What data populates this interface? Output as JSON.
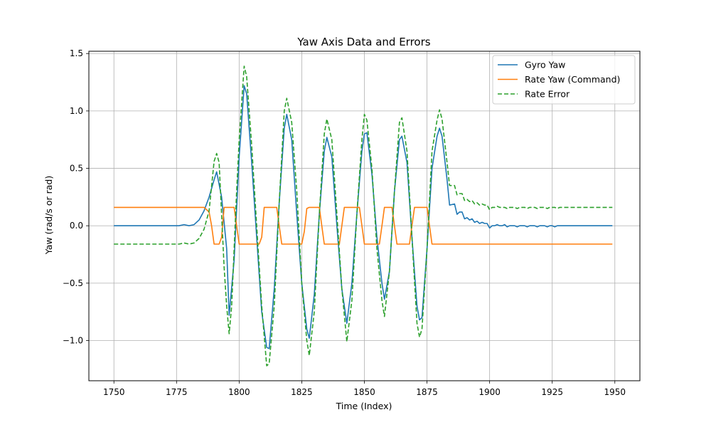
{
  "chart_data": {
    "type": "line",
    "title": "Yaw Axis Data and Errors",
    "xlabel": "Time (Index)",
    "ylabel": "Yaw (rad/s or rad)",
    "xlim": [
      1740,
      1960
    ],
    "ylim": [
      -1.35,
      1.52
    ],
    "xticks": [
      1750,
      1775,
      1800,
      1825,
      1850,
      1875,
      1900,
      1925,
      1950
    ],
    "xtick_labels": [
      "1750",
      "1775",
      "1800",
      "1825",
      "1850",
      "1875",
      "1900",
      "1925",
      "1950"
    ],
    "yticks": [
      -1.0,
      -0.5,
      0.0,
      0.5,
      1.0,
      1.5
    ],
    "ytick_labels": [
      "−1.0",
      "−0.5",
      "0.0",
      "0.5",
      "1.0",
      "1.5"
    ],
    "grid": true,
    "legend_position": "top-right",
    "series": [
      {
        "name": "Gyro Yaw",
        "color": "#1f77b4",
        "dash": "solid",
        "points": [
          [
            1750,
            0.0
          ],
          [
            1776,
            0.0
          ],
          [
            1778,
            0.01
          ],
          [
            1780,
            0.0
          ],
          [
            1782,
            0.01
          ],
          [
            1784,
            0.05
          ],
          [
            1786,
            0.13
          ],
          [
            1788,
            0.25
          ],
          [
            1790,
            0.4
          ],
          [
            1791,
            0.47
          ],
          [
            1793,
            0.25
          ],
          [
            1795,
            -0.2
          ],
          [
            1796,
            -0.78
          ],
          [
            1798,
            -0.3
          ],
          [
            1800,
            0.6
          ],
          [
            1802,
            1.22
          ],
          [
            1803,
            1.15
          ],
          [
            1805,
            0.55
          ],
          [
            1807,
            -0.1
          ],
          [
            1809,
            -0.75
          ],
          [
            1811,
            -1.06
          ],
          [
            1812,
            -1.07
          ],
          [
            1814,
            -0.55
          ],
          [
            1816,
            0.2
          ],
          [
            1818,
            0.85
          ],
          [
            1819,
            0.97
          ],
          [
            1821,
            0.75
          ],
          [
            1823,
            0.1
          ],
          [
            1825,
            -0.5
          ],
          [
            1827,
            -0.9
          ],
          [
            1828,
            -0.98
          ],
          [
            1830,
            -0.6
          ],
          [
            1832,
            0.1
          ],
          [
            1834,
            0.65
          ],
          [
            1835,
            0.77
          ],
          [
            1837,
            0.6
          ],
          [
            1839,
            0.0
          ],
          [
            1841,
            -0.55
          ],
          [
            1843,
            -0.85
          ],
          [
            1845,
            -0.5
          ],
          [
            1847,
            0.1
          ],
          [
            1849,
            0.65
          ],
          [
            1850,
            0.8
          ],
          [
            1851,
            0.81
          ],
          [
            1853,
            0.45
          ],
          [
            1855,
            -0.1
          ],
          [
            1857,
            -0.5
          ],
          [
            1858,
            -0.64
          ],
          [
            1860,
            -0.4
          ],
          [
            1862,
            0.3
          ],
          [
            1864,
            0.75
          ],
          [
            1865,
            0.78
          ],
          [
            1867,
            0.55
          ],
          [
            1869,
            -0.1
          ],
          [
            1871,
            -0.7
          ],
          [
            1872,
            -0.82
          ],
          [
            1873,
            -0.8
          ],
          [
            1875,
            -0.2
          ],
          [
            1877,
            0.5
          ],
          [
            1879,
            0.78
          ],
          [
            1880,
            0.85
          ],
          [
            1881,
            0.78
          ],
          [
            1883,
            0.4
          ],
          [
            1884,
            0.18
          ],
          [
            1886,
            0.19
          ],
          [
            1887,
            0.1
          ],
          [
            1888,
            0.12
          ],
          [
            1889,
            0.12
          ],
          [
            1890,
            0.06
          ],
          [
            1891,
            0.07
          ],
          [
            1892,
            0.05
          ],
          [
            1893,
            0.06
          ],
          [
            1894,
            0.03
          ],
          [
            1895,
            0.04
          ],
          [
            1896,
            0.02
          ],
          [
            1897,
            0.03
          ],
          [
            1898,
            0.02
          ],
          [
            1899,
            0.02
          ],
          [
            1900,
            -0.02
          ],
          [
            1901,
            0.0
          ],
          [
            1902,
            0.0
          ],
          [
            1903,
            0.01
          ],
          [
            1904,
            0.0
          ],
          [
            1905,
            0.0
          ],
          [
            1906,
            0.01
          ],
          [
            1907,
            -0.01
          ],
          [
            1908,
            0.0
          ],
          [
            1910,
            0.0
          ],
          [
            1911,
            -0.01
          ],
          [
            1912,
            0.0
          ],
          [
            1914,
            0.0
          ],
          [
            1915,
            -0.01
          ],
          [
            1916,
            0.0
          ],
          [
            1918,
            0.0
          ],
          [
            1919,
            -0.01
          ],
          [
            1920,
            0.0
          ],
          [
            1922,
            0.0
          ],
          [
            1923,
            -0.01
          ],
          [
            1924,
            0.0
          ],
          [
            1925,
            0.0
          ],
          [
            1926,
            -0.01
          ],
          [
            1927,
            0.0
          ],
          [
            1949,
            0.0
          ]
        ]
      },
      {
        "name": "Rate Yaw (Command)",
        "color": "#ff7f0e",
        "dash": "solid",
        "points": [
          [
            1750,
            0.16
          ],
          [
            1786,
            0.16
          ],
          [
            1788,
            0.12
          ],
          [
            1789,
            0.0
          ],
          [
            1790,
            -0.16
          ],
          [
            1792,
            -0.16
          ],
          [
            1793,
            -0.1
          ],
          [
            1794,
            0.16
          ],
          [
            1798,
            0.16
          ],
          [
            1799,
            0.0
          ],
          [
            1800,
            -0.16
          ],
          [
            1808,
            -0.16
          ],
          [
            1809,
            -0.1
          ],
          [
            1810,
            0.16
          ],
          [
            1815,
            0.16
          ],
          [
            1816,
            0.0
          ],
          [
            1817,
            -0.16
          ],
          [
            1825,
            -0.16
          ],
          [
            1826,
            -0.05
          ],
          [
            1827,
            0.15
          ],
          [
            1828,
            0.16
          ],
          [
            1832,
            0.16
          ],
          [
            1833,
            0.0
          ],
          [
            1834,
            -0.16
          ],
          [
            1840,
            -0.16
          ],
          [
            1841,
            0.0
          ],
          [
            1842,
            0.16
          ],
          [
            1848,
            0.16
          ],
          [
            1849,
            0.0
          ],
          [
            1850,
            -0.16
          ],
          [
            1856,
            -0.16
          ],
          [
            1857,
            0.0
          ],
          [
            1858,
            0.16
          ],
          [
            1861,
            0.16
          ],
          [
            1862,
            0.0
          ],
          [
            1863,
            -0.16
          ],
          [
            1866,
            -0.16
          ],
          [
            1868,
            -0.16
          ],
          [
            1869,
            0.0
          ],
          [
            1870,
            0.16
          ],
          [
            1875,
            0.16
          ],
          [
            1876,
            0.0
          ],
          [
            1877,
            -0.16
          ],
          [
            1949,
            -0.16
          ]
        ]
      },
      {
        "name": "Rate Error",
        "color": "#2ca02c",
        "dash": "dashed",
        "points": [
          [
            1750,
            -0.16
          ],
          [
            1776,
            -0.16
          ],
          [
            1778,
            -0.15
          ],
          [
            1780,
            -0.16
          ],
          [
            1782,
            -0.15
          ],
          [
            1784,
            -0.11
          ],
          [
            1786,
            -0.03
          ],
          [
            1788,
            0.13
          ],
          [
            1790,
            0.56
          ],
          [
            1791,
            0.63
          ],
          [
            1792,
            0.55
          ],
          [
            1794,
            -0.36
          ],
          [
            1795,
            -0.7
          ],
          [
            1796,
            -0.94
          ],
          [
            1797,
            -0.7
          ],
          [
            1799,
            0.3
          ],
          [
            1800,
            0.75
          ],
          [
            1802,
            1.39
          ],
          [
            1803,
            1.3
          ],
          [
            1805,
            0.7
          ],
          [
            1807,
            0.0
          ],
          [
            1809,
            -0.7
          ],
          [
            1811,
            -1.22
          ],
          [
            1812,
            -1.2
          ],
          [
            1814,
            -0.7
          ],
          [
            1816,
            0.2
          ],
          [
            1818,
            1.0
          ],
          [
            1819,
            1.11
          ],
          [
            1821,
            0.9
          ],
          [
            1823,
            0.3
          ],
          [
            1825,
            -0.5
          ],
          [
            1827,
            -1.0
          ],
          [
            1828,
            -1.13
          ],
          [
            1830,
            -0.75
          ],
          [
            1832,
            0.1
          ],
          [
            1834,
            0.8
          ],
          [
            1835,
            0.93
          ],
          [
            1837,
            0.75
          ],
          [
            1839,
            0.1
          ],
          [
            1841,
            -0.55
          ],
          [
            1843,
            -1.01
          ],
          [
            1845,
            -0.65
          ],
          [
            1847,
            0.1
          ],
          [
            1849,
            0.75
          ],
          [
            1850,
            0.97
          ],
          [
            1851,
            0.92
          ],
          [
            1853,
            0.5
          ],
          [
            1855,
            -0.2
          ],
          [
            1857,
            -0.65
          ],
          [
            1858,
            -0.79
          ],
          [
            1860,
            -0.4
          ],
          [
            1862,
            0.3
          ],
          [
            1864,
            0.9
          ],
          [
            1865,
            0.94
          ],
          [
            1867,
            0.65
          ],
          [
            1869,
            -0.1
          ],
          [
            1871,
            -0.85
          ],
          [
            1872,
            -0.97
          ],
          [
            1873,
            -0.9
          ],
          [
            1875,
            -0.2
          ],
          [
            1877,
            0.65
          ],
          [
            1879,
            0.92
          ],
          [
            1880,
            1.01
          ],
          [
            1881,
            0.93
          ],
          [
            1883,
            0.55
          ],
          [
            1884,
            0.35
          ],
          [
            1886,
            0.35
          ],
          [
            1887,
            0.27
          ],
          [
            1888,
            0.28
          ],
          [
            1889,
            0.28
          ],
          [
            1890,
            0.22
          ],
          [
            1891,
            0.23
          ],
          [
            1892,
            0.21
          ],
          [
            1893,
            0.22
          ],
          [
            1894,
            0.19
          ],
          [
            1895,
            0.2
          ],
          [
            1896,
            0.18
          ],
          [
            1897,
            0.19
          ],
          [
            1898,
            0.18
          ],
          [
            1899,
            0.18
          ],
          [
            1900,
            0.14
          ],
          [
            1901,
            0.16
          ],
          [
            1902,
            0.16
          ],
          [
            1903,
            0.17
          ],
          [
            1904,
            0.16
          ],
          [
            1906,
            0.16
          ],
          [
            1907,
            0.15
          ],
          [
            1908,
            0.16
          ],
          [
            1910,
            0.16
          ],
          [
            1911,
            0.15
          ],
          [
            1912,
            0.16
          ],
          [
            1914,
            0.16
          ],
          [
            1915,
            0.15
          ],
          [
            1916,
            0.16
          ],
          [
            1918,
            0.16
          ],
          [
            1919,
            0.15
          ],
          [
            1920,
            0.16
          ],
          [
            1922,
            0.16
          ],
          [
            1923,
            0.15
          ],
          [
            1924,
            0.16
          ],
          [
            1926,
            0.16
          ],
          [
            1927,
            0.15
          ],
          [
            1928,
            0.16
          ],
          [
            1949,
            0.16
          ]
        ]
      }
    ]
  }
}
